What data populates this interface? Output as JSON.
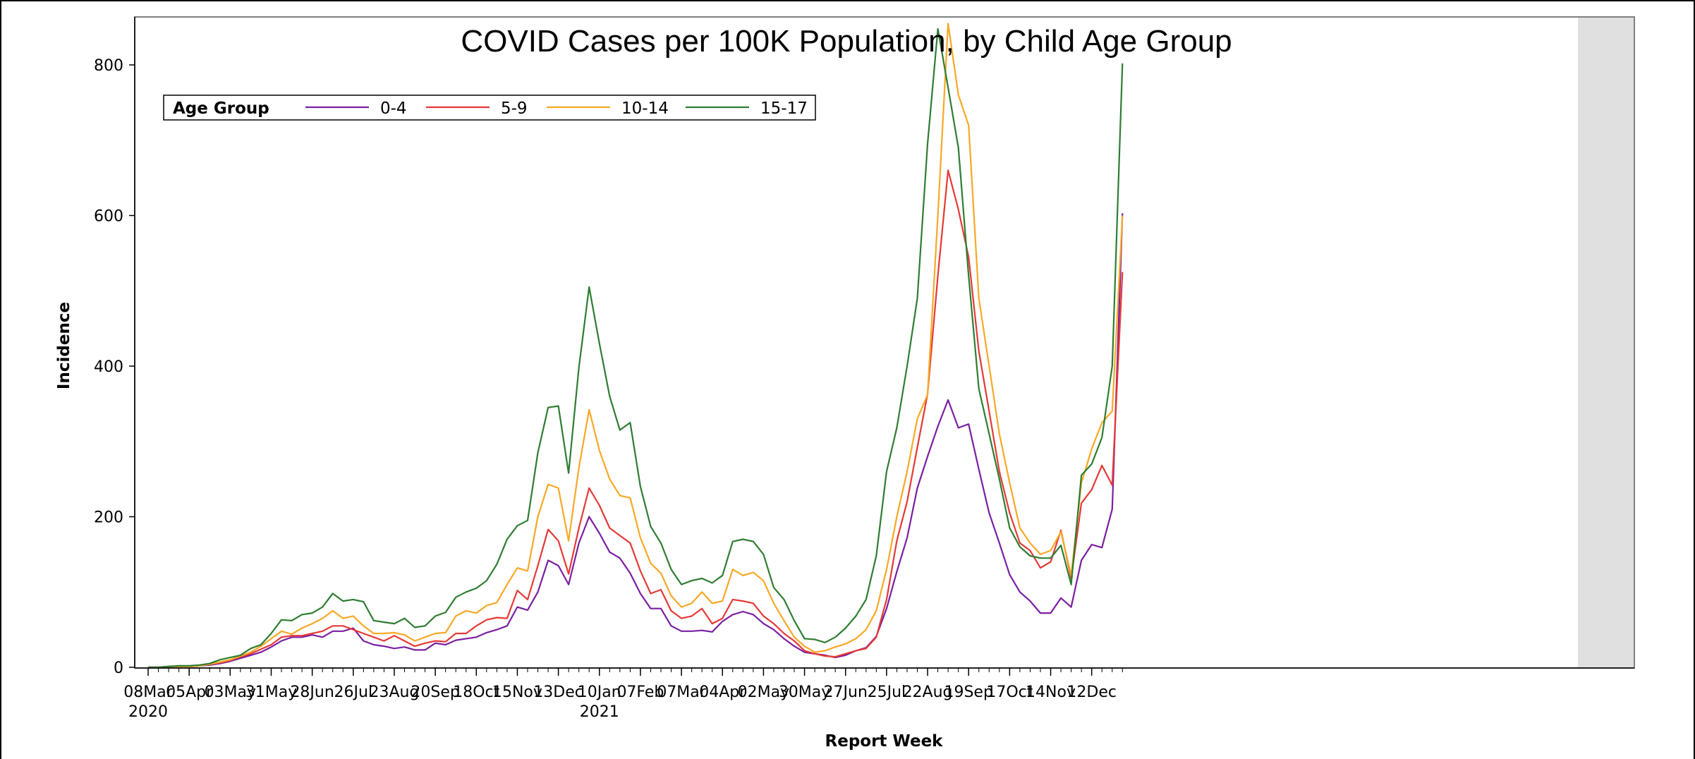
{
  "chart_data": {
    "type": "line",
    "title": "COVID Cases per 100K Population, by Child Age Group",
    "xlabel": "Report Week",
    "ylabel": "Incidence",
    "ylim": [
      0,
      860
    ],
    "yticks": [
      0,
      200,
      400,
      600,
      800
    ],
    "x_tick_labels": [
      "08Mar\n2020",
      "05Apr",
      "03May",
      "31May",
      "28Jun",
      "26Jul",
      "23Aug",
      "20Sep",
      "18Oct",
      "15Nov",
      "13Dec",
      "10Jan\n2021",
      "07Feb",
      "07Mar",
      "04Apr",
      "02May",
      "30May",
      "27Jun",
      "25Jul",
      "22Aug",
      "19Sep",
      "17Oct",
      "14Nov",
      "12Dec"
    ],
    "x_start": "2020-03-08",
    "x_interval_days": 7,
    "shaded_region_label": "",
    "legend": {
      "title": "Age Group",
      "position": "top-left"
    },
    "grid": false,
    "series": [
      {
        "name": "0-4",
        "color": "#7B1FA2",
        "values": [
          0,
          0,
          1,
          1,
          1,
          2,
          3,
          5,
          8,
          12,
          16,
          20,
          27,
          35,
          40,
          40,
          43,
          40,
          48,
          48,
          52,
          35,
          30,
          28,
          25,
          27,
          23,
          23,
          32,
          30,
          36,
          38,
          40,
          46,
          50,
          55,
          80,
          76,
          100,
          142,
          135,
          110,
          165,
          200,
          178,
          153,
          145,
          125,
          98,
          78,
          78,
          55,
          48,
          48,
          49,
          47,
          61,
          70,
          74,
          70,
          58,
          50,
          38,
          28,
          20,
          18,
          16,
          13,
          16,
          22,
          26,
          41,
          78,
          127,
          172,
          238,
          280,
          320,
          355,
          318,
          323,
          263,
          205,
          165,
          123,
          100,
          88,
          72,
          72,
          92,
          80,
          142,
          163,
          159,
          210,
          603
        ]
      },
      {
        "name": "5-9",
        "color": "#E53935",
        "values": [
          0,
          0,
          1,
          1,
          1,
          2,
          4,
          6,
          9,
          14,
          18,
          24,
          30,
          40,
          42,
          42,
          45,
          48,
          55,
          55,
          50,
          45,
          40,
          35,
          42,
          35,
          28,
          32,
          35,
          34,
          45,
          45,
          55,
          63,
          66,
          65,
          102,
          90,
          135,
          183,
          168,
          124,
          185,
          238,
          215,
          185,
          175,
          165,
          128,
          98,
          103,
          75,
          65,
          68,
          78,
          58,
          65,
          90,
          88,
          85,
          68,
          58,
          45,
          35,
          22,
          18,
          15,
          14,
          18,
          22,
          25,
          40,
          90,
          168,
          220,
          292,
          363,
          520,
          660,
          608,
          545,
          420,
          340,
          260,
          205,
          165,
          155,
          132,
          140,
          182,
          118,
          218,
          236,
          268,
          242,
          525
        ]
      },
      {
        "name": "10-14",
        "color": "#F9A825",
        "values": [
          0,
          0,
          1,
          1,
          1,
          2,
          4,
          7,
          10,
          15,
          20,
          28,
          38,
          48,
          44,
          52,
          58,
          65,
          75,
          65,
          68,
          55,
          45,
          45,
          46,
          43,
          35,
          40,
          45,
          46,
          68,
          75,
          72,
          82,
          86,
          110,
          132,
          128,
          200,
          243,
          238,
          168,
          265,
          342,
          288,
          250,
          228,
          225,
          172,
          138,
          125,
          95,
          80,
          85,
          100,
          85,
          88,
          130,
          122,
          126,
          115,
          85,
          62,
          40,
          28,
          20,
          22,
          27,
          31,
          38,
          50,
          75,
          130,
          200,
          260,
          330,
          362,
          600,
          855,
          760,
          720,
          490,
          400,
          310,
          245,
          185,
          165,
          150,
          155,
          180,
          122,
          245,
          290,
          325,
          340,
          600
        ]
      },
      {
        "name": "15-17",
        "color": "#2E7D32",
        "values": [
          0,
          0,
          1,
          2,
          2,
          3,
          5,
          10,
          13,
          16,
          25,
          30,
          45,
          63,
          62,
          70,
          72,
          80,
          98,
          88,
          90,
          87,
          62,
          60,
          58,
          65,
          53,
          55,
          68,
          73,
          93,
          100,
          105,
          115,
          137,
          170,
          188,
          195,
          285,
          345,
          347,
          258,
          398,
          505,
          430,
          360,
          315,
          325,
          240,
          187,
          165,
          130,
          110,
          115,
          118,
          112,
          122,
          167,
          170,
          167,
          150,
          106,
          90,
          62,
          38,
          37,
          33,
          40,
          52,
          68,
          90,
          148,
          260,
          318,
          400,
          490,
          695,
          848,
          770,
          690,
          520,
          370,
          310,
          250,
          185,
          160,
          148,
          145,
          145,
          162,
          110,
          255,
          270,
          305,
          400,
          802
        ]
      }
    ]
  }
}
